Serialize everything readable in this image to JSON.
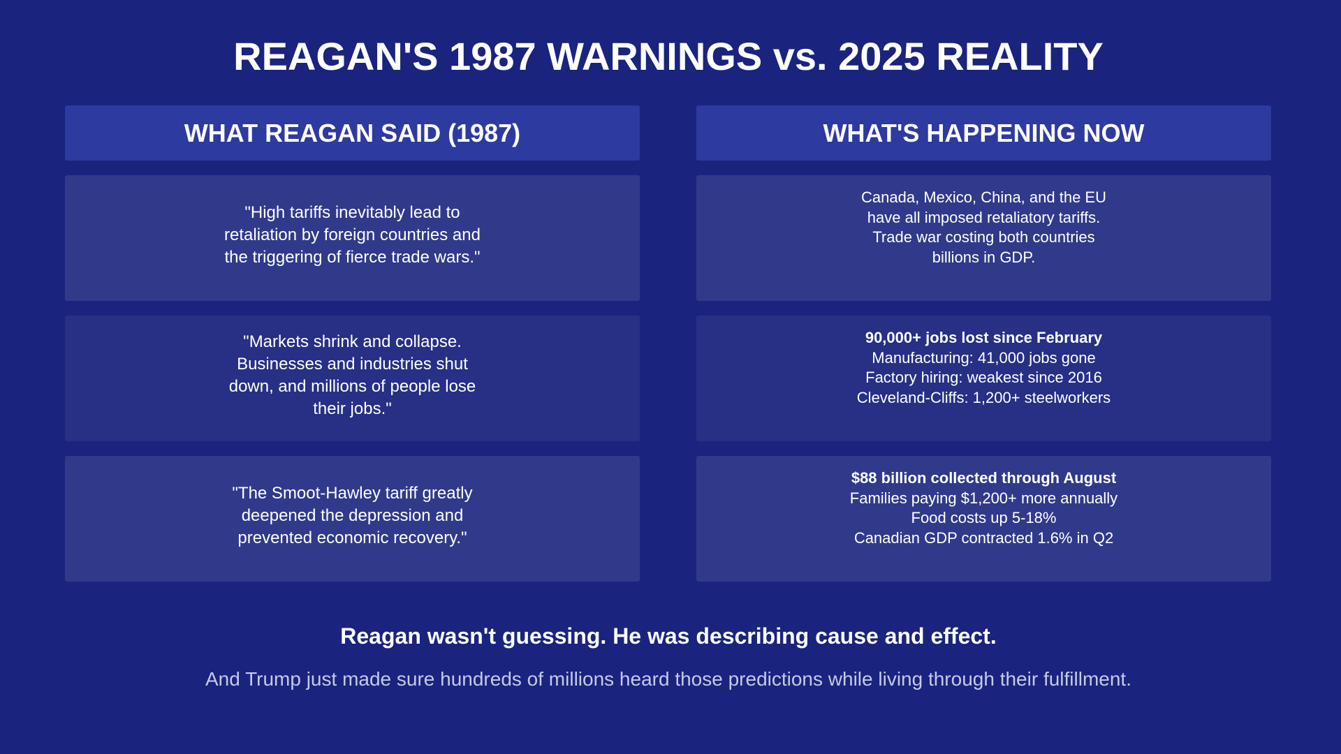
{
  "title": "REAGAN'S 1987 WARNINGS vs. 2025 REALITY",
  "left_header": "WHAT REAGAN SAID (1987)",
  "right_header": "WHAT'S HAPPENING NOW",
  "quotes": [
    "\"High tariffs inevitably lead to retaliation by foreign countries and the triggering of fierce trade wars.\"",
    "\"Markets shrink and collapse. Businesses and industries shut down, and millions of people lose their jobs.\"",
    "\"The Smoot-Hawley tariff greatly deepened the depression and prevented economic recovery.\""
  ],
  "facts": [
    {
      "headline": "",
      "lines": [
        "Canada, Mexico, China, and the EU",
        "have all imposed retaliatory tariffs.",
        "Trade war costing both countries",
        "billions in GDP."
      ]
    },
    {
      "headline": "90,000+ jobs lost since February",
      "lines": [
        "Manufacturing: 41,000 jobs gone",
        "Factory hiring: weakest since 2016",
        "Cleveland-Cliffs: 1,200+ steelworkers"
      ]
    },
    {
      "headline": "$88 billion collected through August",
      "lines": [
        "Families paying $1,200+ more annually",
        "Food costs up 5-18%",
        "Canadian GDP contracted 1.6% in Q2"
      ]
    }
  ],
  "conclusion": "Reagan wasn't guessing. He was describing cause and effect.",
  "subconclusion": "And Trump just made sure hundreds of millions heard those predictions while living through their fulfillment.",
  "colors": {
    "background": "#1a237e",
    "header_box": "#2d3aa0",
    "card_light": "#313a8a",
    "card_dark": "#273085",
    "subtext": "#c5cae9"
  }
}
